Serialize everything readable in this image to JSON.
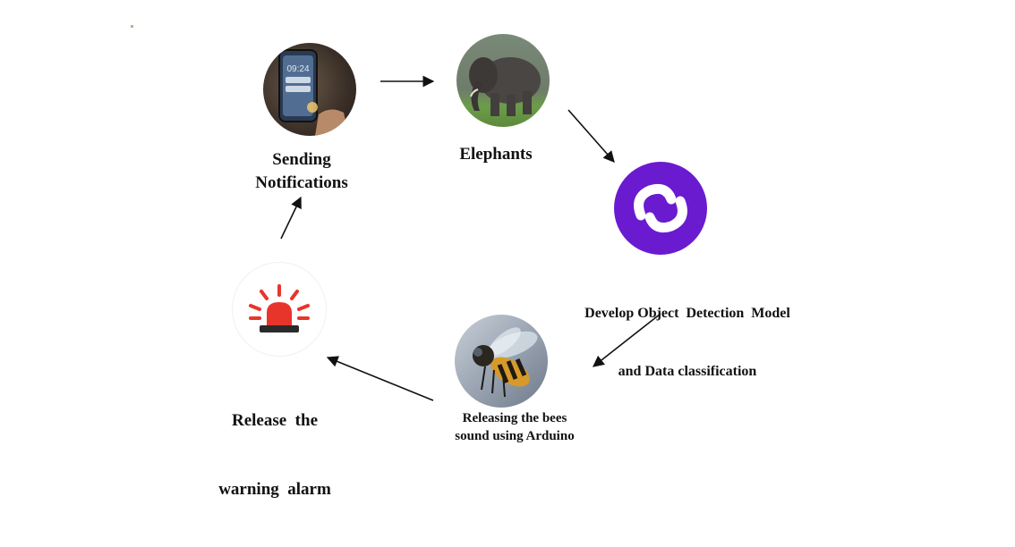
{
  "nodes": {
    "notifications": {
      "label_line1": "Sending",
      "label_line2": "Notifications",
      "icon": "smartphone-notification-icon"
    },
    "elephants": {
      "label": "Elephants",
      "icon": "elephant-icon"
    },
    "model": {
      "label_line1": "Develop Object  Detection  Model",
      "label_line2": "and Data classification",
      "icon": "model-logo-icon"
    },
    "bees": {
      "label_line1": "Releasing the bees",
      "label_line2": "sound using Arduino",
      "icon": "bee-icon"
    },
    "alarm": {
      "label_line1": "Release  the",
      "label_line2": "warning  alarm",
      "icon": "siren-icon"
    }
  },
  "colors": {
    "logo_purple": "#6a1bd0",
    "siren_red": "#e8352b",
    "text": "#111111"
  }
}
